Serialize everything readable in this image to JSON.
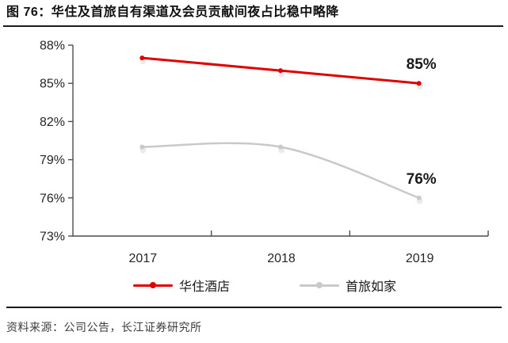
{
  "figure": {
    "title": "图 76：华住及首旅自有渠道及会员贡献间夜占比稳中略降",
    "source": "资料来源：公司公告，长江证券研究所"
  },
  "chart_data": {
    "type": "line",
    "title": "华住及首旅自有渠道及会员贡献间夜占比稳中略降",
    "categories": [
      "2017",
      "2018",
      "2019"
    ],
    "series": [
      {
        "name": "华住酒店",
        "values": [
          87,
          86,
          85
        ],
        "color": "#e00000",
        "smooth": false,
        "end_label": "85%"
      },
      {
        "name": "首旅如家",
        "values": [
          80,
          80,
          76
        ],
        "color": "#c9c9c9",
        "smooth": true,
        "end_label": "76%"
      }
    ],
    "xlabel": "",
    "ylabel": "",
    "ylim": [
      73,
      88
    ],
    "y_ticks": [
      {
        "label": "88%",
        "value": 88
      },
      {
        "label": "85%",
        "value": 85
      },
      {
        "label": "82%",
        "value": 82
      },
      {
        "label": "79%",
        "value": 79
      },
      {
        "label": "76%",
        "value": 76
      },
      {
        "label": "73%",
        "value": 73
      }
    ],
    "grid": false,
    "legend_position": "bottom",
    "axis_color": "#4d4d4d",
    "text_color": "#262626",
    "label_color": "#1a1a1a"
  }
}
